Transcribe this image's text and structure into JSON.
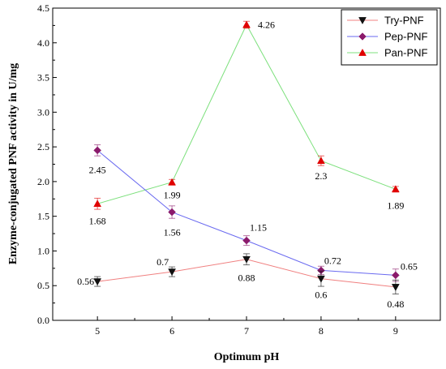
{
  "chart_data": {
    "type": "line",
    "title": "",
    "xlabel": "Optimum pH",
    "ylabel": "Enzyme-conjugated PNF activity in U/mg",
    "x": [
      5,
      6,
      7,
      8,
      9
    ],
    "x_tick_labels": [
      "5",
      "6",
      "7",
      "8",
      "9"
    ],
    "xlim": [
      4.4,
      9.6
    ],
    "ylim": [
      0,
      4.5
    ],
    "y_tick_labels": [
      "0.0",
      "0.5",
      "1.0",
      "1.5",
      "2.0",
      "2.5",
      "3.0",
      "3.5",
      "4.0",
      "4.5"
    ],
    "grid": false,
    "legend_position": "top-right",
    "series": [
      {
        "name": "Try-PNF",
        "marker": "triangle-down",
        "line_color": "#f08080",
        "marker_color": "#111111",
        "values": [
          0.56,
          0.7,
          0.88,
          0.6,
          0.48
        ],
        "errors": [
          0.07,
          0.07,
          0.08,
          0.11,
          0.1
        ],
        "labels": [
          "0.56",
          "0.7",
          "0.88",
          "0.6",
          "0.48"
        ]
      },
      {
        "name": "Pep-PNF",
        "marker": "diamond",
        "line_color": "#6a6af0",
        "marker_color": "#8b1a6b",
        "values": [
          2.45,
          1.56,
          1.15,
          0.72,
          0.65
        ],
        "errors": [
          0.08,
          0.09,
          0.07,
          0.06,
          0.09
        ],
        "labels": [
          "2.45",
          "1.56",
          "1.15",
          "0.72",
          "0.65"
        ]
      },
      {
        "name": "Pan-PNF",
        "marker": "triangle-up",
        "line_color": "#7ce07c",
        "marker_color": "#e00000",
        "values": [
          1.68,
          1.99,
          4.26,
          2.3,
          1.89
        ],
        "errors": [
          0.08,
          0.04,
          0.05,
          0.07,
          0.04
        ],
        "labels": [
          "1.68",
          "1.99",
          "4.26",
          "2.3",
          "1.89"
        ]
      }
    ]
  }
}
